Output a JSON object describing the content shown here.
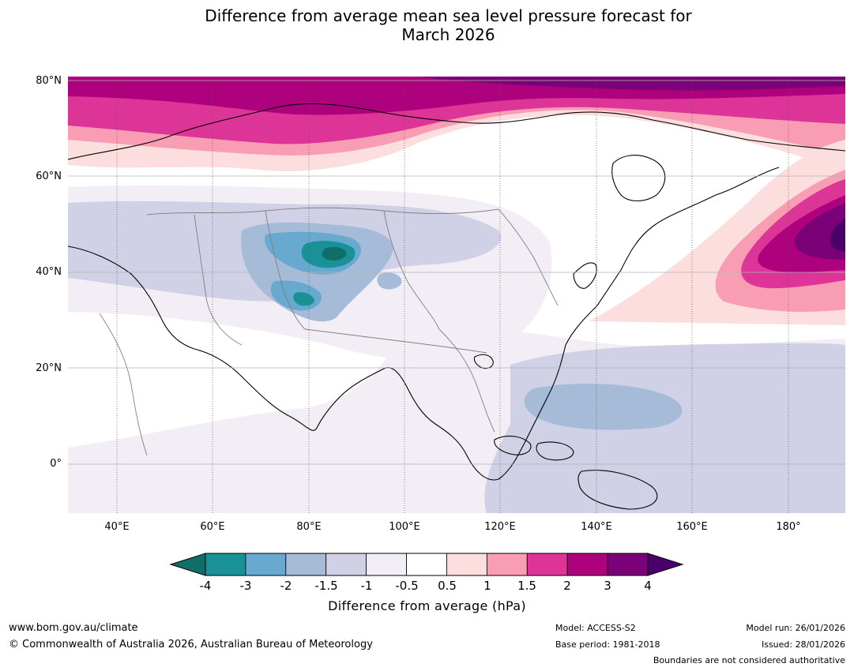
{
  "title": {
    "line1": "Difference from average mean sea level pressure forecast for",
    "line2": "March 2026"
  },
  "map": {
    "lat_labels": [
      "80°N",
      "60°N",
      "40°N",
      "20°N",
      "0°"
    ],
    "lon_labels": [
      "40°E",
      "60°E",
      "80°E",
      "100°E",
      "120°E",
      "140°E",
      "160°E",
      "180°"
    ],
    "lon_range": [
      30,
      192
    ],
    "lat_range": [
      -10,
      81
    ]
  },
  "colorbar": {
    "label": "Difference from average (hPa)",
    "tick_labels": [
      "-4",
      "-3",
      "-2",
      "-1.5",
      "-1",
      "-0.5",
      "0.5",
      "1",
      "1.5",
      "2",
      "3",
      "4"
    ],
    "colors": [
      "#0f6f68",
      "#1a9097",
      "#67a9cf",
      "#a6bbd8",
      "#d0d1e6",
      "#f3eef6",
      "#ffffff",
      "#fddede",
      "#f99db5",
      "#dd3497",
      "#ae017e",
      "#7a0177",
      "#49006a"
    ]
  },
  "footer": {
    "website": "www.bom.gov.au/climate",
    "copyright": "© Commonwealth of Australia 2026, Australian Bureau of Meteorology",
    "model": "Model: ACCESS-S2",
    "base_period": "Base period: 1981-2018",
    "model_run": "Model run: 26/01/2026",
    "issued": "Issued: 28/01/2026",
    "disclaimer": "Boundaries are not considered authoritative"
  }
}
